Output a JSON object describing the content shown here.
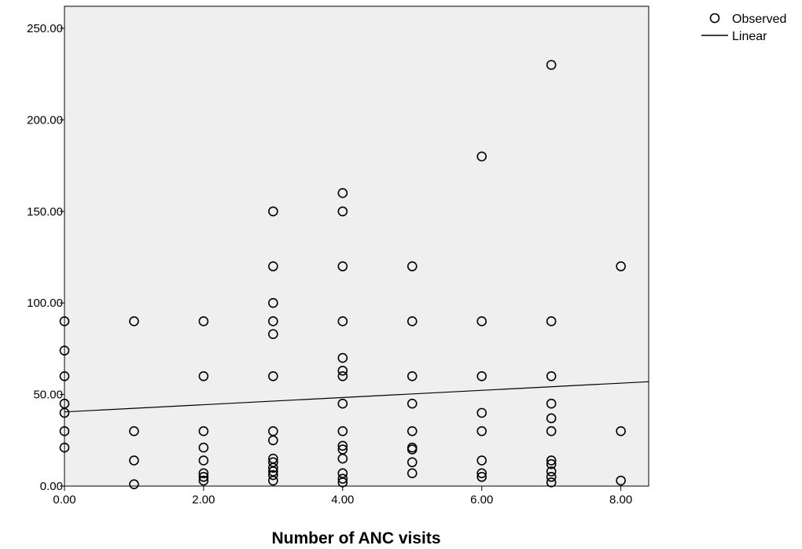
{
  "chart_data": {
    "type": "scatter",
    "title": "",
    "xlabel": "Number of ANC visits",
    "ylabel": "",
    "xlim": [
      0,
      8.4
    ],
    "ylim": [
      0,
      262
    ],
    "x_ticks": [
      0,
      2,
      4,
      6,
      8
    ],
    "x_tick_labels": [
      "0.00",
      "2.00",
      "4.00",
      "6.00",
      "8.00"
    ],
    "y_ticks": [
      0,
      50,
      100,
      150,
      200,
      250
    ],
    "y_tick_labels": [
      "0.00",
      "50.00",
      "100.00",
      "150.00",
      "200.00",
      "250.00"
    ],
    "grid": false,
    "legend_position": "top-right",
    "background": "#efefef",
    "series": [
      {
        "name": "Observed",
        "type": "scatter",
        "points": [
          [
            0,
            90
          ],
          [
            0,
            74
          ],
          [
            0,
            60
          ],
          [
            0,
            45
          ],
          [
            0,
            40
          ],
          [
            0,
            30
          ],
          [
            0,
            21
          ],
          [
            1,
            90
          ],
          [
            1,
            30
          ],
          [
            1,
            14
          ],
          [
            1,
            1
          ],
          [
            2,
            90
          ],
          [
            2,
            60
          ],
          [
            2,
            30
          ],
          [
            2,
            21
          ],
          [
            2,
            14
          ],
          [
            2,
            7
          ],
          [
            2,
            5
          ],
          [
            2,
            3
          ],
          [
            3,
            150
          ],
          [
            3,
            120
          ],
          [
            3,
            100
          ],
          [
            3,
            90
          ],
          [
            3,
            83
          ],
          [
            3,
            60
          ],
          [
            3,
            30
          ],
          [
            3,
            25
          ],
          [
            3,
            15
          ],
          [
            3,
            13
          ],
          [
            3,
            10
          ],
          [
            3,
            8
          ],
          [
            3,
            6
          ],
          [
            3,
            3
          ],
          [
            4,
            160
          ],
          [
            4,
            150
          ],
          [
            4,
            120
          ],
          [
            4,
            90
          ],
          [
            4,
            70
          ],
          [
            4,
            63
          ],
          [
            4,
            60
          ],
          [
            4,
            45
          ],
          [
            4,
            30
          ],
          [
            4,
            22
          ],
          [
            4,
            20
          ],
          [
            4,
            15
          ],
          [
            4,
            7
          ],
          [
            4,
            4
          ],
          [
            4,
            2
          ],
          [
            5,
            120
          ],
          [
            5,
            90
          ],
          [
            5,
            60
          ],
          [
            5,
            45
          ],
          [
            5,
            30
          ],
          [
            5,
            21
          ],
          [
            5,
            20
          ],
          [
            5,
            13
          ],
          [
            5,
            7
          ],
          [
            6,
            180
          ],
          [
            6,
            90
          ],
          [
            6,
            60
          ],
          [
            6,
            40
          ],
          [
            6,
            30
          ],
          [
            6,
            14
          ],
          [
            6,
            7
          ],
          [
            6,
            5
          ],
          [
            7,
            230
          ],
          [
            7,
            90
          ],
          [
            7,
            60
          ],
          [
            7,
            45
          ],
          [
            7,
            37
          ],
          [
            7,
            30
          ],
          [
            7,
            14
          ],
          [
            7,
            12
          ],
          [
            7,
            8
          ],
          [
            7,
            5
          ],
          [
            7,
            2
          ],
          [
            8,
            120
          ],
          [
            8,
            30
          ],
          [
            8,
            3
          ]
        ]
      },
      {
        "name": "Linear",
        "type": "line",
        "points": [
          [
            0,
            40.5
          ],
          [
            8.4,
            57
          ]
        ]
      }
    ]
  }
}
